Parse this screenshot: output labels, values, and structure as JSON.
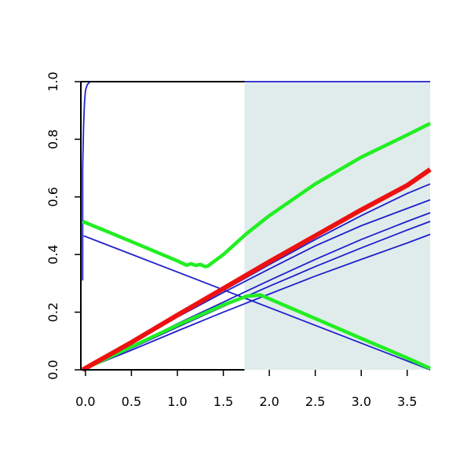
{
  "chart_data": {
    "type": "line",
    "title": "",
    "xlabel": "",
    "ylabel": "",
    "xlim": [
      -0.05,
      3.75
    ],
    "ylim": [
      0.0,
      1.0
    ],
    "grid": false,
    "legend": "none",
    "x_ticks": [
      0.0,
      0.5,
      1.0,
      1.5,
      2.0,
      2.5,
      3.0,
      3.5
    ],
    "x_tick_labels": [
      "0.0",
      "0.5",
      "1.0",
      "1.5",
      "2.0",
      "2.5",
      "3.0",
      "3.5"
    ],
    "y_ticks": [
      0.0,
      0.2,
      0.4,
      0.6,
      0.8,
      1.0
    ],
    "y_tick_labels": [
      "0.0",
      "0.2",
      "0.4",
      "0.6",
      "0.8",
      "1.0"
    ],
    "shaded_region": {
      "x": [
        1.73,
        3.75
      ],
      "color": "#e0ecec"
    },
    "colors": {
      "blue": "#2020cc",
      "green": "#22ee22",
      "red": "#ee1111",
      "axis": "#000000"
    },
    "series": [
      {
        "color": "#2020cc",
        "width": "thin",
        "points": [
          [
            -0.03,
            0.31
          ],
          [
            -0.03,
            0.7
          ],
          [
            -0.02,
            0.85
          ],
          [
            -0.01,
            0.93
          ],
          [
            0.0,
            0.97
          ],
          [
            0.02,
            0.99
          ],
          [
            0.05,
            1.0
          ],
          [
            3.75,
            1.0
          ]
        ]
      },
      {
        "color": "#2020cc",
        "width": "thin",
        "points": [
          [
            -0.02,
            0.465
          ],
          [
            3.75,
            0.0
          ]
        ]
      },
      {
        "color": "#2020cc",
        "width": "thin",
        "points": [
          [
            -0.03,
            0.0
          ],
          [
            0.5,
            0.093
          ],
          [
            1.0,
            0.185
          ],
          [
            1.5,
            0.275
          ],
          [
            2.0,
            0.365
          ],
          [
            2.5,
            0.452
          ],
          [
            3.0,
            0.535
          ],
          [
            3.5,
            0.612
          ],
          [
            3.75,
            0.645
          ]
        ]
      },
      {
        "color": "#2020cc",
        "width": "thin",
        "points": [
          [
            -0.03,
            0.0
          ],
          [
            0.5,
            0.093
          ],
          [
            1.0,
            0.183
          ],
          [
            1.5,
            0.268
          ],
          [
            2.0,
            0.35
          ],
          [
            2.5,
            0.43
          ],
          [
            3.0,
            0.5
          ],
          [
            3.5,
            0.56
          ],
          [
            3.75,
            0.59
          ]
        ]
      },
      {
        "color": "#2020cc",
        "width": "thin",
        "points": [
          [
            -0.03,
            0.0
          ],
          [
            0.5,
            0.08
          ],
          [
            1.0,
            0.16
          ],
          [
            1.5,
            0.235
          ],
          [
            2.0,
            0.31
          ],
          [
            2.5,
            0.383
          ],
          [
            3.0,
            0.452
          ],
          [
            3.5,
            0.515
          ],
          [
            3.75,
            0.545
          ]
        ]
      },
      {
        "color": "#2020cc",
        "width": "thin",
        "points": [
          [
            -0.03,
            0.0
          ],
          [
            0.5,
            0.075
          ],
          [
            1.0,
            0.148
          ],
          [
            1.5,
            0.22
          ],
          [
            2.0,
            0.29
          ],
          [
            2.5,
            0.358
          ],
          [
            3.0,
            0.423
          ],
          [
            3.5,
            0.485
          ],
          [
            3.75,
            0.515
          ]
        ]
      },
      {
        "color": "#2020cc",
        "width": "thin",
        "points": [
          [
            -0.03,
            0.0
          ],
          [
            0.5,
            0.068
          ],
          [
            1.0,
            0.135
          ],
          [
            1.5,
            0.2
          ],
          [
            2.0,
            0.263
          ],
          [
            2.5,
            0.325
          ],
          [
            3.0,
            0.383
          ],
          [
            3.5,
            0.44
          ],
          [
            3.75,
            0.47
          ]
        ]
      },
      {
        "color": "#22ee22",
        "width": "thick",
        "points": [
          [
            -0.03,
            0.0
          ],
          [
            0.5,
            0.08
          ],
          [
            1.0,
            0.155
          ],
          [
            1.5,
            0.225
          ],
          [
            1.75,
            0.255
          ],
          [
            1.9,
            0.26
          ],
          [
            2.5,
            0.178
          ],
          [
            3.0,
            0.109
          ],
          [
            3.5,
            0.041
          ],
          [
            3.75,
            0.005
          ]
        ]
      },
      {
        "color": "#22ee22",
        "width": "thick",
        "points": [
          [
            -0.03,
            0.515
          ],
          [
            0.5,
            0.445
          ],
          [
            1.0,
            0.378
          ],
          [
            1.1,
            0.363
          ],
          [
            1.15,
            0.368
          ],
          [
            1.2,
            0.362
          ],
          [
            1.25,
            0.366
          ],
          [
            1.3,
            0.358
          ],
          [
            1.33,
            0.36
          ],
          [
            1.5,
            0.4
          ],
          [
            1.75,
            0.472
          ],
          [
            2.0,
            0.535
          ],
          [
            2.5,
            0.645
          ],
          [
            3.0,
            0.738
          ],
          [
            3.5,
            0.815
          ],
          [
            3.75,
            0.855
          ]
        ]
      },
      {
        "color": "#ee1111",
        "width": "thicker",
        "points": [
          [
            -0.03,
            0.0
          ],
          [
            0.5,
            0.095
          ],
          [
            1.0,
            0.19
          ],
          [
            1.5,
            0.282
          ],
          [
            2.0,
            0.375
          ],
          [
            2.5,
            0.465
          ],
          [
            3.0,
            0.555
          ],
          [
            3.5,
            0.64
          ],
          [
            3.75,
            0.695
          ]
        ]
      }
    ]
  }
}
